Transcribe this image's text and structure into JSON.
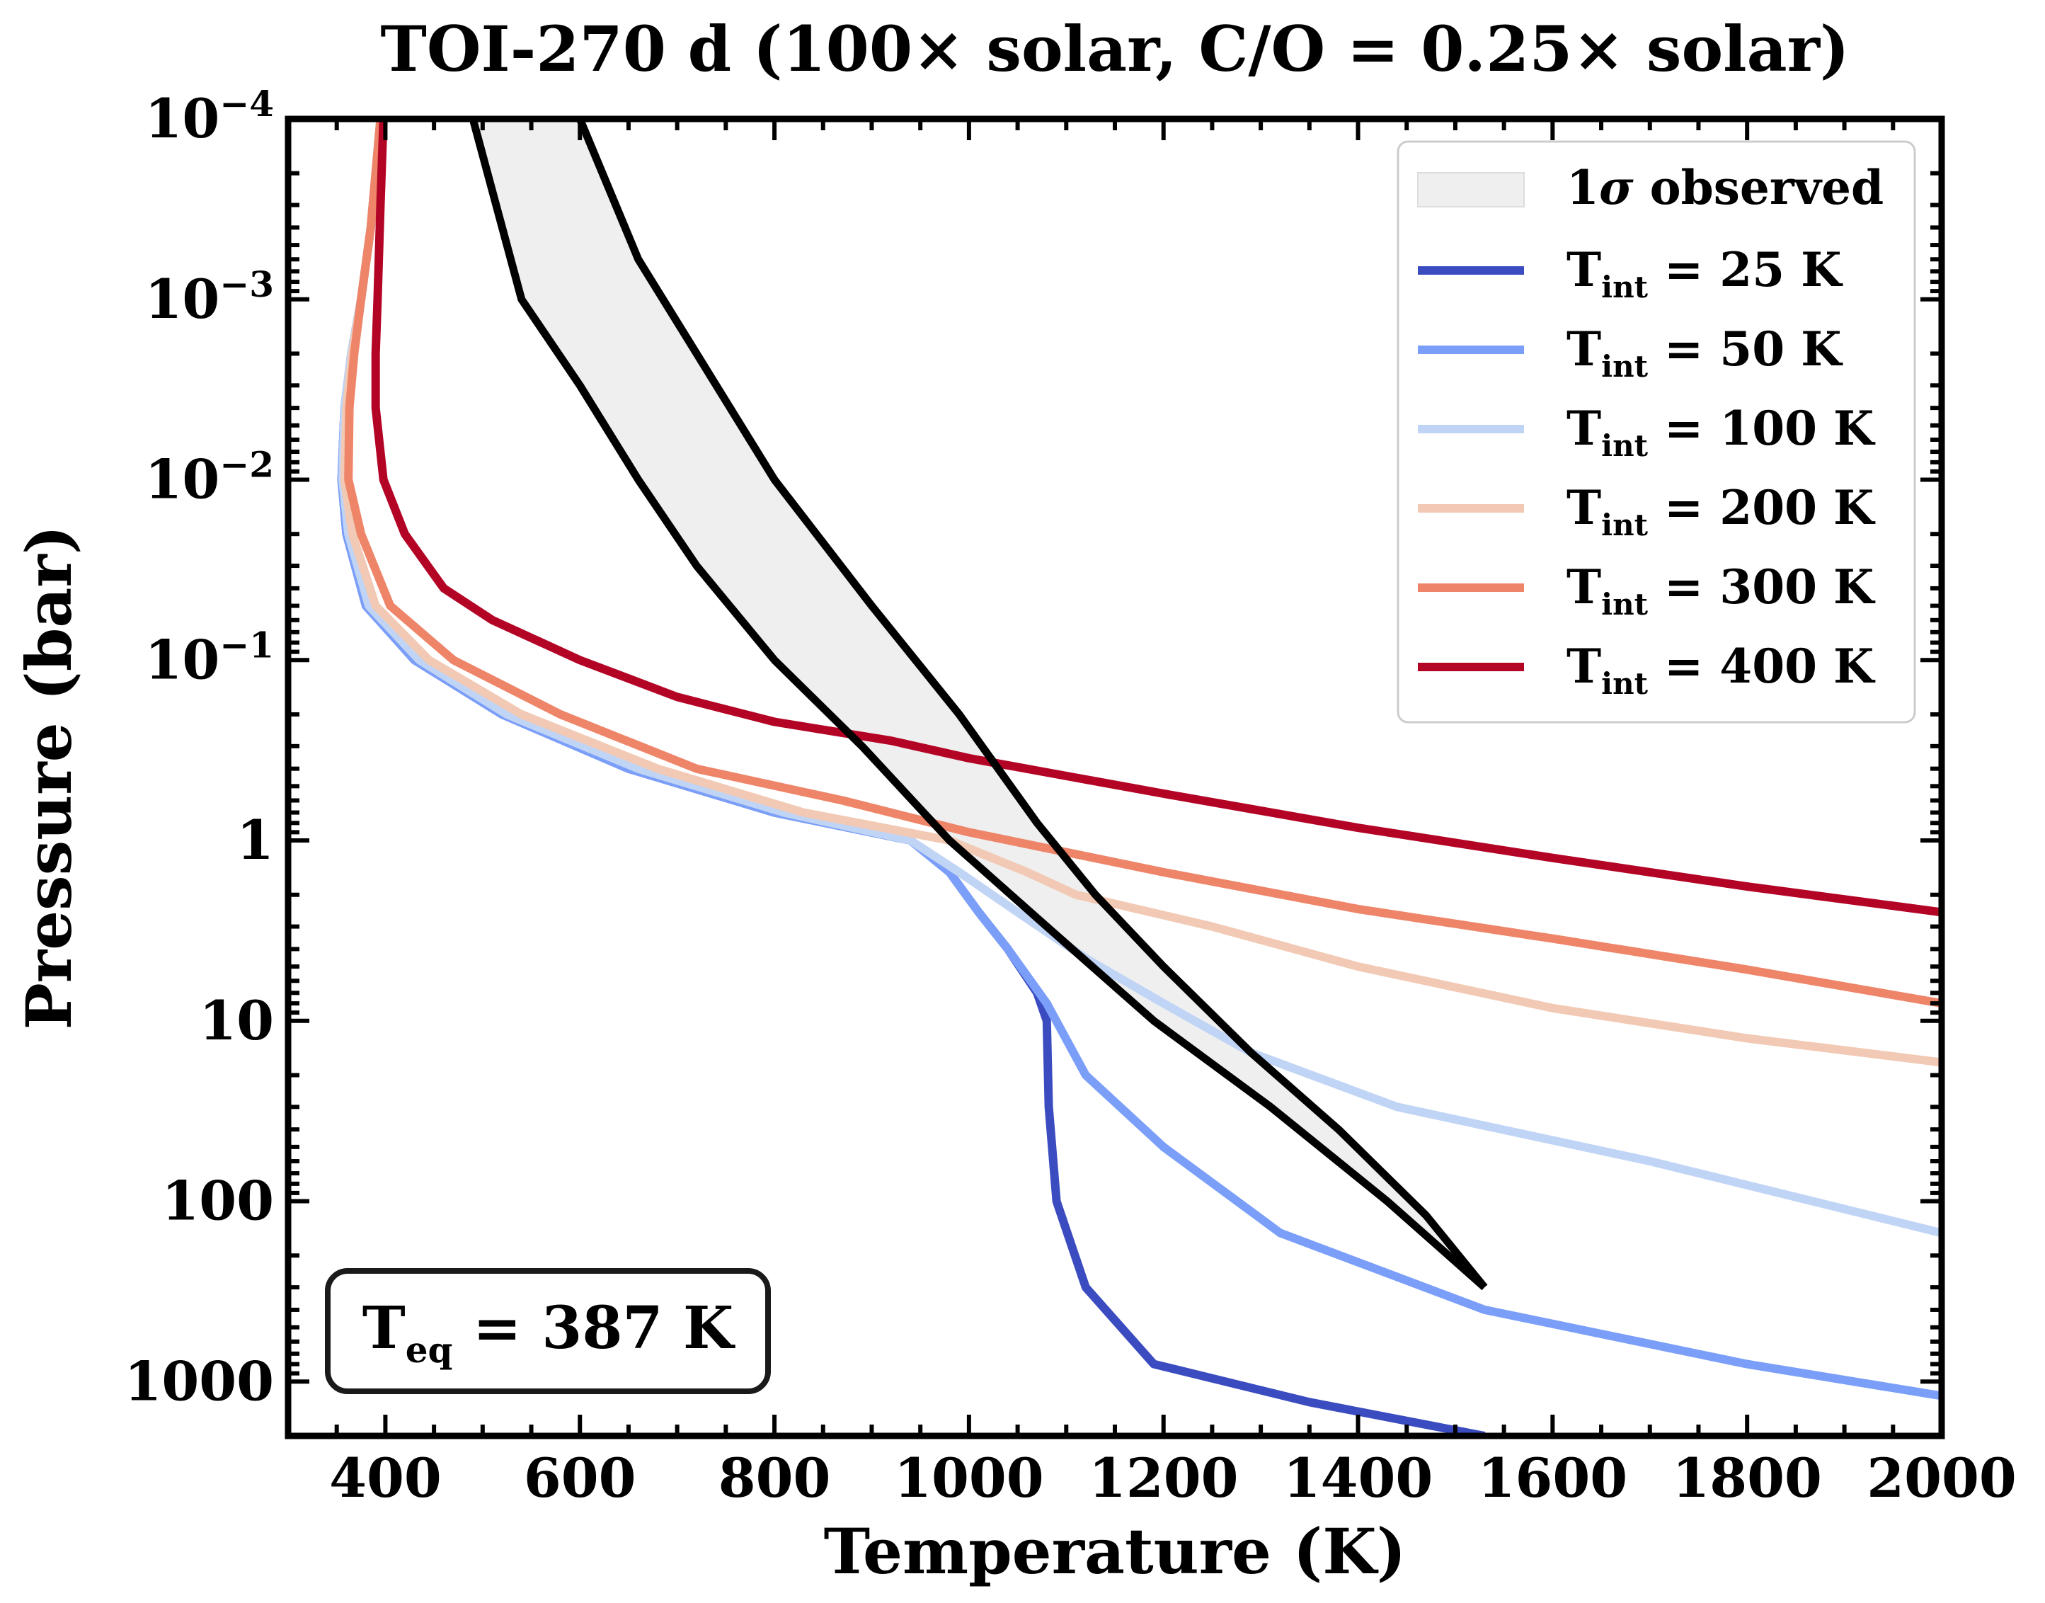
{
  "chart_data": {
    "type": "line",
    "title": "TOI-270 d (100× solar, C/O = 0.25× solar)",
    "xlabel": "Temperature (K)",
    "ylabel": "Pressure (bar)",
    "xlim": [
      300,
      2000
    ],
    "ylim": [
      2000,
      0.0001
    ],
    "yscale": "log",
    "x_ticks": [
      400,
      600,
      800,
      1000,
      1200,
      1400,
      1600,
      1800,
      2000
    ],
    "x_tick_labels": [
      "400",
      "600",
      "800",
      "1000",
      "1200",
      "1400",
      "1600",
      "1800",
      "2000"
    ],
    "y_ticks": [
      0.0001,
      0.001,
      0.01,
      0.1,
      1,
      10,
      100,
      1000
    ],
    "y_tick_labels": [
      {
        "base": "10",
        "exp": "−4"
      },
      {
        "base": "10",
        "exp": "−3"
      },
      {
        "base": "10",
        "exp": "−2"
      },
      {
        "base": "10",
        "exp": "−1"
      },
      {
        "base": "1",
        "exp": ""
      },
      {
        "base": "10",
        "exp": ""
      },
      {
        "base": "100",
        "exp": ""
      },
      {
        "base": "1000",
        "exp": ""
      }
    ],
    "observed_band": {
      "label": "1σ observed",
      "label_main": "1",
      "label_sigma": "σ",
      "label_rest": " observed",
      "fill": "#efefef",
      "stroke": "#000000",
      "left_edge": [
        [
          490,
          0.0001
        ],
        [
          540,
          0.001
        ],
        [
          600,
          0.003
        ],
        [
          660,
          0.01
        ],
        [
          720,
          0.03
        ],
        [
          800,
          0.1
        ],
        [
          890,
          0.3
        ],
        [
          980,
          1
        ],
        [
          1080,
          3
        ],
        [
          1190,
          10
        ],
        [
          1310,
          30
        ],
        [
          1430,
          100
        ],
        [
          1530,
          300
        ]
      ],
      "right_edge": [
        [
          600,
          0.0001
        ],
        [
          660,
          0.0006
        ],
        [
          720,
          0.002
        ],
        [
          800,
          0.01
        ],
        [
          900,
          0.05
        ],
        [
          990,
          0.2
        ],
        [
          1070,
          0.8
        ],
        [
          1130,
          2
        ],
        [
          1200,
          5
        ],
        [
          1290,
          15
        ],
        [
          1380,
          40
        ],
        [
          1470,
          120
        ],
        [
          1530,
          300
        ]
      ]
    },
    "series": [
      {
        "name": "Tint = 25 K",
        "tint": "25",
        "color": "#3b4cc0",
        "points": [
          [
            395,
            0.0001
          ],
          [
            385,
            0.0004
          ],
          [
            375,
            0.001
          ],
          [
            365,
            0.002
          ],
          [
            358,
            0.004
          ],
          [
            355,
            0.01
          ],
          [
            360,
            0.02
          ],
          [
            380,
            0.05
          ],
          [
            430,
            0.1
          ],
          [
            520,
            0.2
          ],
          [
            650,
            0.4
          ],
          [
            800,
            0.7
          ],
          [
            940,
            1
          ],
          [
            980,
            1.5
          ],
          [
            1010,
            2.5
          ],
          [
            1040,
            4
          ],
          [
            1070,
            7
          ],
          [
            1080,
            10
          ],
          [
            1082,
            30
          ],
          [
            1090,
            100
          ],
          [
            1120,
            300
          ],
          [
            1190,
            800
          ],
          [
            1350,
            1300
          ],
          [
            1530,
            2000
          ]
        ]
      },
      {
        "name": "Tint = 50 K",
        "tint": "50",
        "color": "#7b9ff9",
        "points": [
          [
            395,
            0.0001
          ],
          [
            385,
            0.0004
          ],
          [
            375,
            0.001
          ],
          [
            365,
            0.002
          ],
          [
            358,
            0.004
          ],
          [
            355,
            0.01
          ],
          [
            360,
            0.02
          ],
          [
            380,
            0.05
          ],
          [
            430,
            0.1
          ],
          [
            520,
            0.2
          ],
          [
            650,
            0.4
          ],
          [
            800,
            0.7
          ],
          [
            940,
            1
          ],
          [
            980,
            1.5
          ],
          [
            1010,
            2.5
          ],
          [
            1040,
            4
          ],
          [
            1080,
            8
          ],
          [
            1120,
            20
          ],
          [
            1200,
            50
          ],
          [
            1320,
            150
          ],
          [
            1530,
            400
          ],
          [
            1800,
            800
          ],
          [
            2000,
            1200
          ]
        ]
      },
      {
        "name": "Tint = 100 K",
        "tint": "100",
        "color": "#c0d4f5",
        "points": [
          [
            395,
            0.0001
          ],
          [
            385,
            0.0004
          ],
          [
            375,
            0.001
          ],
          [
            365,
            0.002
          ],
          [
            358,
            0.004
          ],
          [
            356,
            0.01
          ],
          [
            362,
            0.02
          ],
          [
            383,
            0.05
          ],
          [
            435,
            0.1
          ],
          [
            525,
            0.2
          ],
          [
            660,
            0.4
          ],
          [
            810,
            0.7
          ],
          [
            940,
            1
          ],
          [
            990,
            1.5
          ],
          [
            1050,
            2.5
          ],
          [
            1120,
            4.5
          ],
          [
            1200,
            8
          ],
          [
            1290,
            15
          ],
          [
            1440,
            30
          ],
          [
            1700,
            60
          ],
          [
            2000,
            150
          ]
        ]
      },
      {
        "name": "Tint = 200 K",
        "tint": "200",
        "color": "#f2c9b4",
        "points": [
          [
            395,
            0.0001
          ],
          [
            385,
            0.0004
          ],
          [
            375,
            0.001
          ],
          [
            366,
            0.002
          ],
          [
            360,
            0.004
          ],
          [
            358,
            0.01
          ],
          [
            366,
            0.02
          ],
          [
            390,
            0.05
          ],
          [
            445,
            0.1
          ],
          [
            540,
            0.2
          ],
          [
            680,
            0.4
          ],
          [
            830,
            0.7
          ],
          [
            980,
            1
          ],
          [
            1060,
            1.5
          ],
          [
            1110,
            2
          ],
          [
            1250,
            3
          ],
          [
            1400,
            5
          ],
          [
            1600,
            8.5
          ],
          [
            1800,
            12.5
          ],
          [
            2000,
            17
          ]
        ]
      },
      {
        "name": "Tint = 300 K",
        "tint": "300",
        "color": "#ee8468",
        "points": [
          [
            395,
            0.0001
          ],
          [
            385,
            0.0004
          ],
          [
            375,
            0.001
          ],
          [
            368,
            0.002
          ],
          [
            363,
            0.004
          ],
          [
            362,
            0.01
          ],
          [
            375,
            0.02
          ],
          [
            405,
            0.05
          ],
          [
            470,
            0.1
          ],
          [
            580,
            0.2
          ],
          [
            720,
            0.4
          ],
          [
            870,
            0.6
          ],
          [
            1000,
            0.9
          ],
          [
            1200,
            1.5
          ],
          [
            1400,
            2.4
          ],
          [
            1600,
            3.5
          ],
          [
            1800,
            5.2
          ],
          [
            2000,
            8
          ]
        ]
      },
      {
        "name": "Tint = 400 K",
        "tint": "400",
        "color": "#b40426",
        "points": [
          [
            398,
            0.0001
          ],
          [
            395,
            0.0003
          ],
          [
            392,
            0.001
          ],
          [
            390,
            0.002
          ],
          [
            390,
            0.004
          ],
          [
            398,
            0.01
          ],
          [
            420,
            0.02
          ],
          [
            460,
            0.04
          ],
          [
            510,
            0.06
          ],
          [
            600,
            0.1
          ],
          [
            700,
            0.16
          ],
          [
            800,
            0.22
          ],
          [
            920,
            0.28
          ],
          [
            1000,
            0.35
          ],
          [
            1200,
            0.55
          ],
          [
            1400,
            0.85
          ],
          [
            1600,
            1.25
          ],
          [
            1800,
            1.8
          ],
          [
            2000,
            2.5
          ]
        ]
      }
    ],
    "legend_position": "top-right",
    "annotation": {
      "main": "T",
      "sub": "eq",
      "rest": " = 387 K"
    }
  }
}
